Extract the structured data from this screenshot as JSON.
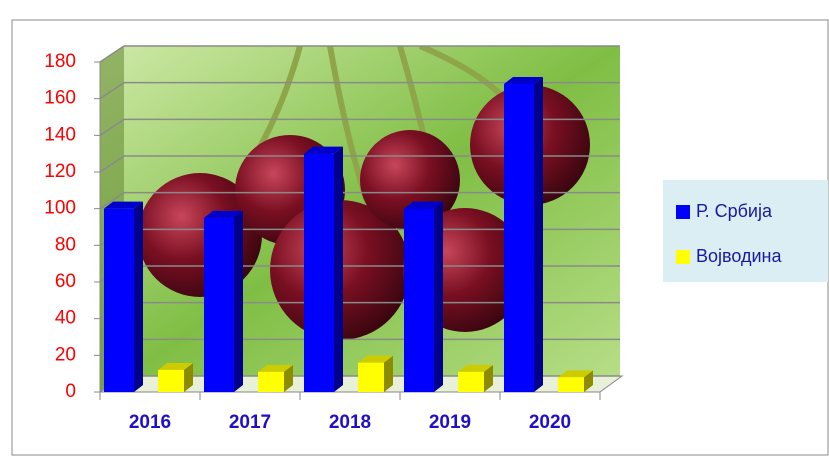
{
  "chart_data": {
    "type": "bar3d",
    "categories": [
      "2016",
      "2017",
      "2018",
      "2019",
      "2020"
    ],
    "series": [
      {
        "name": "Р. Србија",
        "color": "#0000ff",
        "values": [
          100,
          95,
          130,
          100,
          168
        ]
      },
      {
        "name": "Војводина",
        "color": "#ffff00",
        "values": [
          12,
          11,
          16,
          11,
          8
        ]
      }
    ],
    "ylim": [
      0,
      180
    ],
    "yticks": [
      0,
      20,
      40,
      60,
      80,
      100,
      120,
      140,
      160,
      180
    ],
    "grid": true,
    "legend": "right"
  }
}
